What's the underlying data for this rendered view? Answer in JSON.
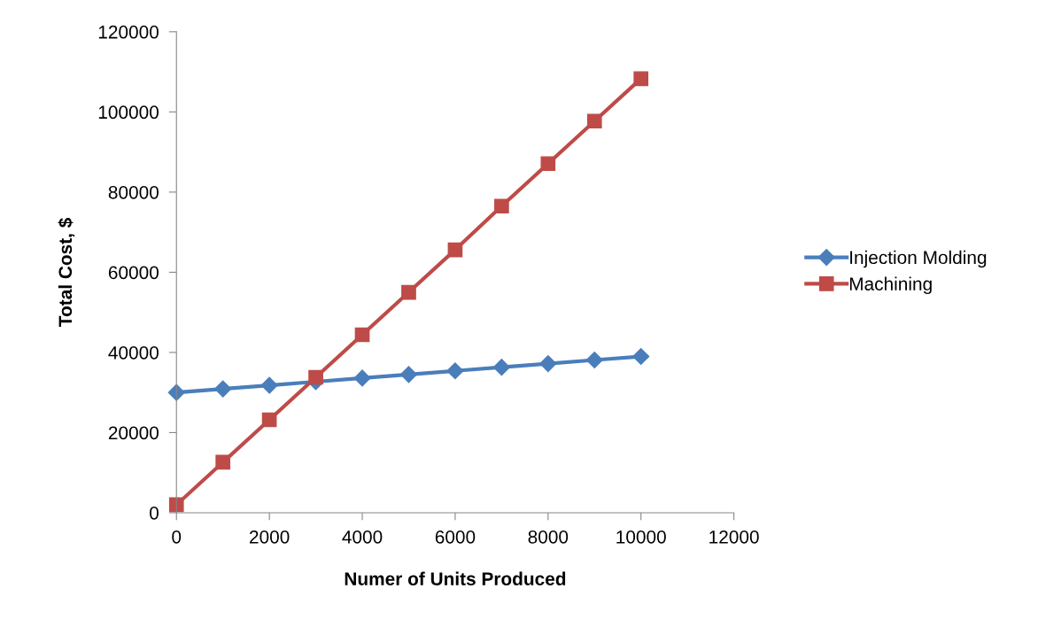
{
  "chart_data": {
    "type": "line",
    "xlabel": "Numer of Units Produced",
    "ylabel": "Total Cost, $",
    "x": [
      0,
      1000,
      2000,
      3000,
      4000,
      5000,
      6000,
      7000,
      8000,
      9000,
      10000
    ],
    "series": [
      {
        "name": "Injection Molding",
        "color": "#4a7ebb",
        "marker": "diamond",
        "values": [
          30000,
          30900,
          31800,
          32700,
          33600,
          34500,
          35400,
          36300,
          37200,
          38100,
          39000
        ]
      },
      {
        "name": "Machining",
        "color": "#be4b48",
        "marker": "square",
        "values": [
          2000,
          12600,
          23200,
          33800,
          44400,
          55000,
          65600,
          76500,
          87100,
          97700,
          108300
        ]
      }
    ],
    "xlim": [
      0,
      12000
    ],
    "xticks": [
      0,
      2000,
      4000,
      6000,
      8000,
      10000,
      12000
    ],
    "ylim": [
      0,
      120000
    ],
    "yticks": [
      0,
      20000,
      40000,
      60000,
      80000,
      100000,
      120000
    ],
    "grid": false,
    "legend": "right",
    "line_style": "solid"
  }
}
